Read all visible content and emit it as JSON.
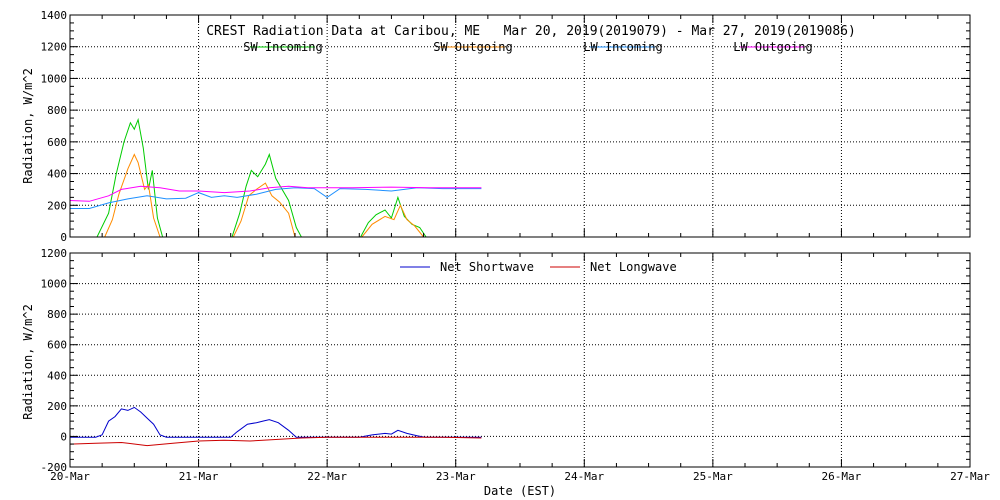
{
  "chart_data": [
    {
      "type": "line",
      "title": "CREST Radiation Data at Caribou, ME   Mar 20, 2019(2019079) - Mar 27, 2019(2019086)",
      "ylabel": "Radiation, W/m^2",
      "xlabel": "",
      "xlim": [
        0,
        7
      ],
      "ylim": [
        0,
        1400
      ],
      "yticks": [
        0,
        200,
        400,
        600,
        800,
        1000,
        1200,
        1400
      ],
      "grid": true,
      "legend_position": "top",
      "series": [
        {
          "name": "SW Incoming",
          "color": "#00cc00",
          "points": [
            [
              0.21,
              0
            ],
            [
              0.3,
              150
            ],
            [
              0.36,
              400
            ],
            [
              0.42,
              600
            ],
            [
              0.47,
              720
            ],
            [
              0.5,
              680
            ],
            [
              0.53,
              740
            ],
            [
              0.57,
              560
            ],
            [
              0.61,
              300
            ],
            [
              0.64,
              420
            ],
            [
              0.68,
              120
            ],
            [
              0.72,
              0
            ],
            [
              1.26,
              0
            ],
            [
              1.32,
              150
            ],
            [
              1.37,
              320
            ],
            [
              1.41,
              420
            ],
            [
              1.46,
              380
            ],
            [
              1.52,
              460
            ],
            [
              1.55,
              520
            ],
            [
              1.6,
              370
            ],
            [
              1.65,
              300
            ],
            [
              1.7,
              230
            ],
            [
              1.76,
              60
            ],
            [
              1.8,
              0
            ],
            [
              2.26,
              0
            ],
            [
              2.32,
              90
            ],
            [
              2.38,
              140
            ],
            [
              2.45,
              170
            ],
            [
              2.5,
              120
            ],
            [
              2.55,
              250
            ],
            [
              2.6,
              130
            ],
            [
              2.66,
              80
            ],
            [
              2.72,
              60
            ],
            [
              2.77,
              0
            ]
          ]
        },
        {
          "name": "SW Outgoing",
          "color": "#ff8c00",
          "points": [
            [
              0.27,
              0
            ],
            [
              0.33,
              110
            ],
            [
              0.38,
              270
            ],
            [
              0.45,
              430
            ],
            [
              0.5,
              520
            ],
            [
              0.53,
              470
            ],
            [
              0.58,
              300
            ],
            [
              0.61,
              330
            ],
            [
              0.65,
              120
            ],
            [
              0.7,
              0
            ],
            [
              1.27,
              0
            ],
            [
              1.33,
              100
            ],
            [
              1.39,
              260
            ],
            [
              1.45,
              300
            ],
            [
              1.52,
              340
            ],
            [
              1.57,
              260
            ],
            [
              1.63,
              220
            ],
            [
              1.7,
              150
            ],
            [
              1.75,
              0
            ],
            [
              2.27,
              0
            ],
            [
              2.35,
              80
            ],
            [
              2.45,
              130
            ],
            [
              2.52,
              110
            ],
            [
              2.57,
              200
            ],
            [
              2.62,
              110
            ],
            [
              2.68,
              70
            ],
            [
              2.75,
              0
            ]
          ]
        },
        {
          "name": "LW Incoming",
          "color": "#1e90ff",
          "points": [
            [
              0,
              180
            ],
            [
              0.15,
              180
            ],
            [
              0.3,
              215
            ],
            [
              0.45,
              240
            ],
            [
              0.6,
              260
            ],
            [
              0.75,
              240
            ],
            [
              0.9,
              245
            ],
            [
              1.0,
              280
            ],
            [
              1.1,
              250
            ],
            [
              1.2,
              260
            ],
            [
              1.3,
              250
            ],
            [
              1.45,
              270
            ],
            [
              1.6,
              300
            ],
            [
              1.75,
              310
            ],
            [
              1.9,
              305
            ],
            [
              2.0,
              250
            ],
            [
              2.1,
              305
            ],
            [
              2.3,
              300
            ],
            [
              2.5,
              290
            ],
            [
              2.7,
              310
            ],
            [
              2.9,
              305
            ],
            [
              3.2,
              305
            ]
          ]
        },
        {
          "name": "LW Outgoing",
          "color": "#ff00ff",
          "points": [
            [
              0,
              230
            ],
            [
              0.15,
              225
            ],
            [
              0.3,
              260
            ],
            [
              0.4,
              300
            ],
            [
              0.55,
              320
            ],
            [
              0.7,
              310
            ],
            [
              0.85,
              290
            ],
            [
              1.0,
              290
            ],
            [
              1.2,
              280
            ],
            [
              1.4,
              290
            ],
            [
              1.55,
              310
            ],
            [
              1.7,
              320
            ],
            [
              1.85,
              310
            ],
            [
              2.0,
              310
            ],
            [
              2.2,
              310
            ],
            [
              2.5,
              315
            ],
            [
              2.8,
              310
            ],
            [
              3.2,
              310
            ]
          ]
        }
      ]
    },
    {
      "type": "line",
      "title": "",
      "ylabel": "Radiation, W/m^2",
      "xlabel": "Date (EST)",
      "xlim": [
        0,
        7
      ],
      "ylim": [
        -200,
        1200
      ],
      "yticks": [
        -200,
        0,
        200,
        400,
        600,
        800,
        1000,
        1200
      ],
      "xtick_labels": [
        "20-Mar",
        "21-Mar",
        "22-Mar",
        "23-Mar",
        "24-Mar",
        "25-Mar",
        "26-Mar",
        "27-Mar"
      ],
      "grid": true,
      "legend_position": "top",
      "series": [
        {
          "name": "Net Shortwave",
          "color": "#0000cc",
          "points": [
            [
              0,
              -5
            ],
            [
              0.2,
              -5
            ],
            [
              0.25,
              10
            ],
            [
              0.3,
              100
            ],
            [
              0.35,
              130
            ],
            [
              0.4,
              180
            ],
            [
              0.45,
              170
            ],
            [
              0.5,
              190
            ],
            [
              0.55,
              160
            ],
            [
              0.6,
              120
            ],
            [
              0.65,
              80
            ],
            [
              0.7,
              10
            ],
            [
              0.75,
              -5
            ],
            [
              1.25,
              -5
            ],
            [
              1.3,
              30
            ],
            [
              1.38,
              80
            ],
            [
              1.45,
              90
            ],
            [
              1.5,
              100
            ],
            [
              1.55,
              110
            ],
            [
              1.62,
              90
            ],
            [
              1.7,
              40
            ],
            [
              1.76,
              -5
            ],
            [
              2.25,
              -5
            ],
            [
              2.35,
              10
            ],
            [
              2.45,
              20
            ],
            [
              2.5,
              15
            ],
            [
              2.55,
              40
            ],
            [
              2.62,
              20
            ],
            [
              2.7,
              5
            ],
            [
              2.76,
              -5
            ],
            [
              3.2,
              -5
            ]
          ]
        },
        {
          "name": "Net Longwave",
          "color": "#cc0000",
          "points": [
            [
              0,
              -50
            ],
            [
              0.2,
              -45
            ],
            [
              0.4,
              -40
            ],
            [
              0.6,
              -60
            ],
            [
              0.8,
              -45
            ],
            [
              1.0,
              -30
            ],
            [
              1.2,
              -25
            ],
            [
              1.4,
              -30
            ],
            [
              1.6,
              -20
            ],
            [
              1.8,
              -10
            ],
            [
              2.0,
              -5
            ],
            [
              2.3,
              -5
            ],
            [
              2.6,
              -5
            ],
            [
              2.9,
              -5
            ],
            [
              3.2,
              -10
            ]
          ]
        }
      ]
    }
  ]
}
